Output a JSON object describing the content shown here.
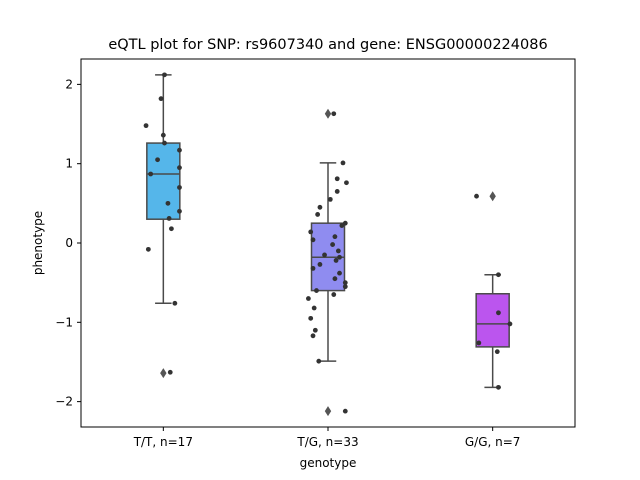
{
  "chart_data": {
    "type": "box",
    "title": "eQTL plot for SNP: rs9607340 and gene: ENSG00000224086",
    "xlabel": "genotype",
    "ylabel": "phenotype",
    "ylim": [
      -2.32,
      2.32
    ],
    "yticks": [
      -2,
      -1,
      0,
      1,
      2
    ],
    "ytick_labels": [
      "−2",
      "−1",
      "0",
      "1",
      "2"
    ],
    "grid": false,
    "colors": {
      "axis": "#000000",
      "box_edge": "#4a4a4a",
      "point": "#333333",
      "outlier": "#555555"
    },
    "groups": [
      {
        "label": "T/T, n=17",
        "color": "#55b6ea",
        "q1": 0.3,
        "median": 0.87,
        "q3": 1.26,
        "whisker_low": -0.76,
        "whisker_high": 2.12,
        "outliers": [
          -1.64
        ],
        "points": [
          2.12,
          1.82,
          1.48,
          1.36,
          1.26,
          1.17,
          0.95,
          0.87,
          0.7,
          0.5,
          0.4,
          0.31,
          0.18,
          -0.08,
          -0.76,
          -1.63,
          1.05
        ],
        "jitter": [
          0.01,
          -0.02,
          -0.15,
          0.0,
          0.01,
          0.14,
          0.14,
          -0.11,
          0.14,
          0.04,
          0.14,
          0.05,
          0.07,
          -0.13,
          0.1,
          0.06,
          -0.05
        ]
      },
      {
        "label": "T/G, n=33",
        "color": "#8f8cf0",
        "q1": -0.6,
        "median": -0.18,
        "q3": 0.25,
        "whisker_low": -1.49,
        "whisker_high": 1.01,
        "outliers": [
          1.63,
          -2.12
        ],
        "points": [
          1.63,
          1.01,
          0.81,
          0.76,
          0.65,
          0.55,
          0.45,
          0.36,
          0.25,
          0.22,
          0.14,
          0.08,
          0.04,
          -0.02,
          -0.1,
          -0.15,
          -0.18,
          -0.22,
          -0.27,
          -0.32,
          -0.38,
          -0.45,
          -0.5,
          -0.55,
          -0.6,
          -0.65,
          -0.7,
          -0.82,
          -0.95,
          -1.1,
          -1.17,
          -1.49,
          -2.12
        ],
        "jitter": [
          0.05,
          0.13,
          0.08,
          0.16,
          0.08,
          0.02,
          -0.07,
          -0.09,
          0.15,
          0.12,
          -0.15,
          0.06,
          -0.13,
          0.04,
          0.09,
          -0.03,
          0.1,
          0.07,
          -0.07,
          -0.13,
          0.1,
          0.06,
          0.15,
          0.15,
          -0.1,
          0.05,
          -0.17,
          -0.12,
          -0.15,
          -0.11,
          -0.13,
          -0.08,
          0.15
        ]
      },
      {
        "label": "G/G, n=7",
        "color": "#bb55ee",
        "q1": -1.31,
        "median": -1.02,
        "q3": -0.64,
        "whisker_low": -1.82,
        "whisker_high": -0.4,
        "outliers": [
          0.59
        ],
        "points": [
          0.59,
          -0.4,
          -0.88,
          -1.02,
          -1.26,
          -1.37,
          -1.82
        ],
        "jitter": [
          -0.14,
          0.05,
          0.05,
          0.15,
          -0.12,
          0.04,
          0.05
        ]
      }
    ]
  }
}
